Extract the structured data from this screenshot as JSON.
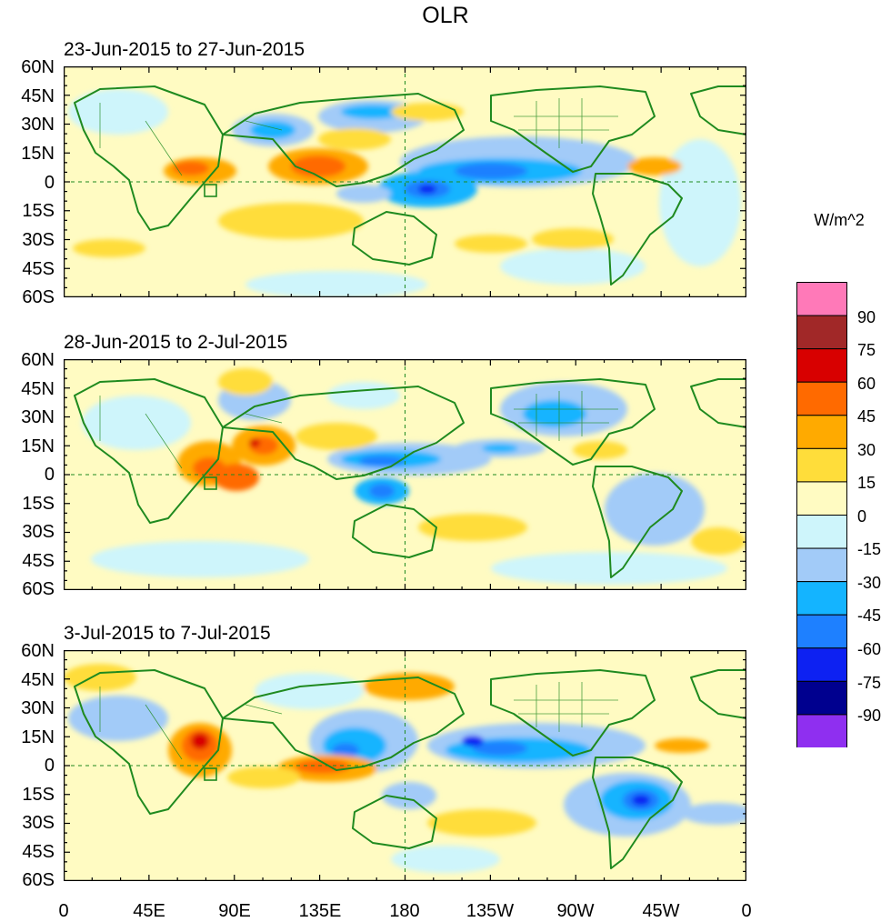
{
  "title": "OLR",
  "panels": [
    {
      "subtitle": "23-Jun-2015 to 27-Jun-2015"
    },
    {
      "subtitle": "28-Jun-2015 to 2-Jul-2015"
    },
    {
      "subtitle": "3-Jul-2015 to 7-Jul-2015"
    }
  ],
  "lat_ticks": [
    "60N",
    "45N",
    "30N",
    "15N",
    "0",
    "15S",
    "30S",
    "45S",
    "60S"
  ],
  "lon_ticks": [
    "0",
    "45E",
    "90E",
    "135E",
    "180",
    "135W",
    "90W",
    "45W",
    "0"
  ],
  "colorbar": {
    "units": "W/m^2",
    "labels": [
      "90",
      "75",
      "60",
      "45",
      "30",
      "15",
      "0",
      "-15",
      "-30",
      "-45",
      "-60",
      "-75",
      "-90"
    ],
    "colors": [
      "#ff79b8",
      "#a12828",
      "#d80000",
      "#ff6a00",
      "#ffaa00",
      "#ffdd3a",
      "#fffbc2",
      "#cef5fb",
      "#a2cbf8",
      "#14b4ff",
      "#1e80ff",
      "#0d21f2",
      "#00008f",
      "#8f2ff0"
    ]
  },
  "style": {
    "coast": "#1f8a1f",
    "axis": "#000000"
  }
}
